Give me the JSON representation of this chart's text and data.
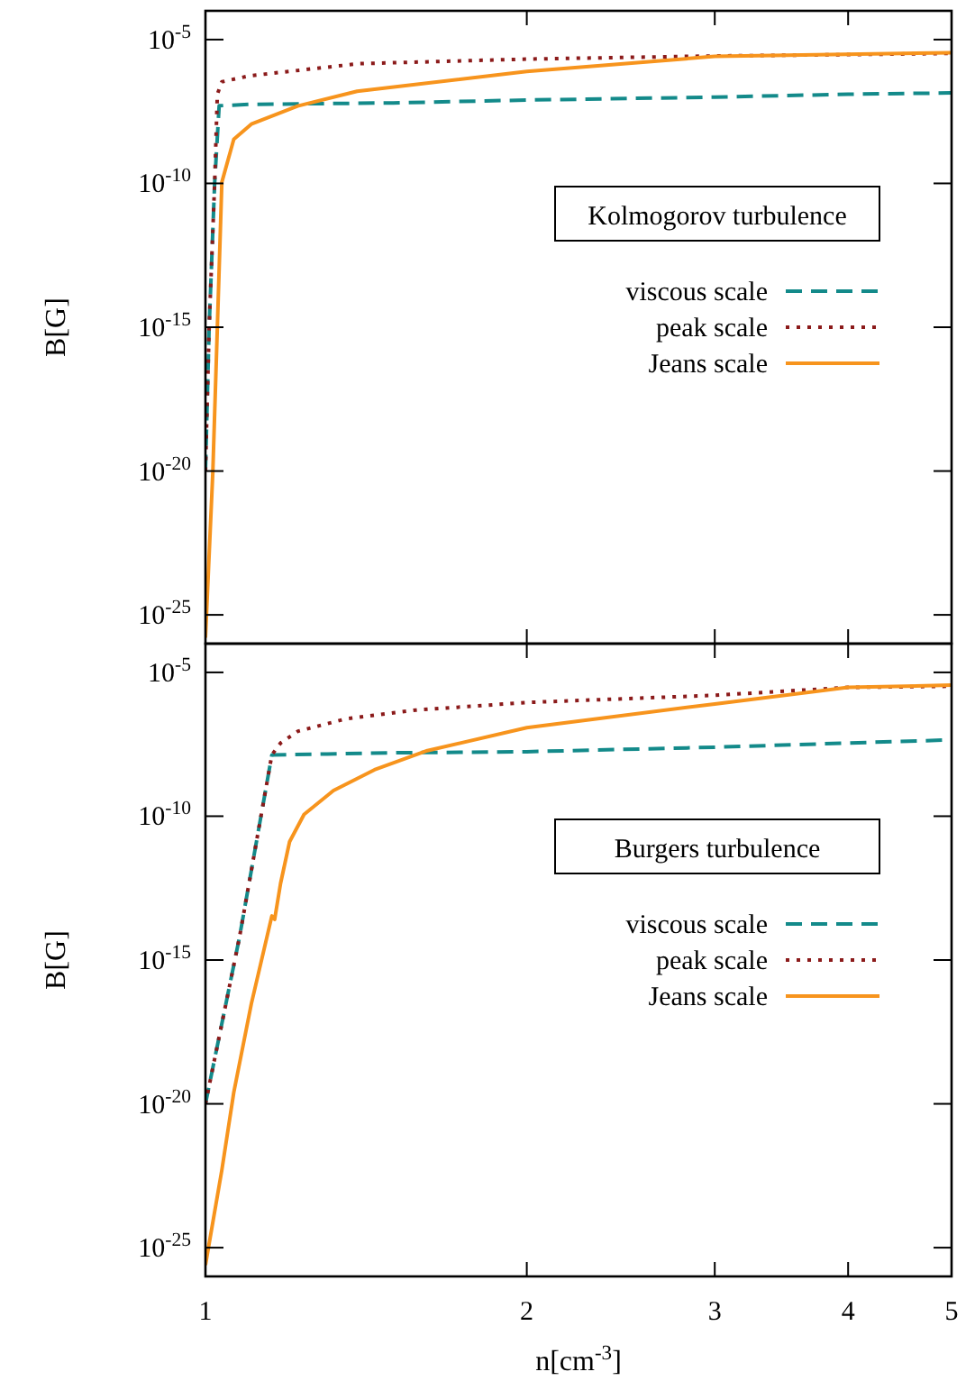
{
  "chart_data": [
    {
      "type": "line",
      "legend_title": "Kolmogorov turbulence",
      "ylabel": "B[G]",
      "log": "xy",
      "xlim": [
        1,
        5
      ],
      "xticks": [
        {
          "value": 1,
          "label": null
        },
        {
          "value": 2,
          "label": null
        },
        {
          "value": 3,
          "label": null
        },
        {
          "value": 4,
          "label": null
        },
        {
          "value": 5,
          "label": null
        }
      ],
      "ylim": [
        1e-26,
        0.0001
      ],
      "yticks": [
        {
          "value": 1e-05,
          "label": "10$^{-5}$"
        },
        {
          "value": 1e-10,
          "label": "10$^{-10}$"
        },
        {
          "value": 1e-15,
          "label": "10$^{-15}$"
        },
        {
          "value": 1e-20,
          "label": "10$^{-20}$"
        },
        {
          "value": 1e-25,
          "label": "10$^{-25}$"
        }
      ],
      "tick_labels": "y",
      "legend": "right",
      "grid": false,
      "series": [
        {
          "name": "viscous scale",
          "color": "#138a8a",
          "line_style": "dashed",
          "x": [
            1,
            1.008,
            1.02,
            1.03,
            1.1,
            1.5,
            2,
            3,
            4,
            5
          ],
          "values": [
            1e-20,
            1e-15,
            1e-10,
            5e-08,
            5.6e-08,
            6.3e-08,
            7.9e-08,
            1e-07,
            1.26e-07,
            1.4e-07
          ]
        },
        {
          "name": "peak scale",
          "color": "#8b1a1a",
          "line_style": "dotted",
          "x": [
            1,
            1.008,
            1.02,
            1.026,
            1.036,
            1.1,
            1.39,
            2,
            3,
            4,
            5
          ],
          "values": [
            1e-20,
            1e-15,
            1e-10,
            1.26e-07,
            3.4e-07,
            5.5e-07,
            1.45e-06,
            2.1e-06,
            2.7e-06,
            3e-06,
            3.3e-06
          ]
        },
        {
          "name": "Jeans scale",
          "color": "#f7941d",
          "line_style": "solid",
          "x": [
            1,
            1.016,
            1.026,
            1.036,
            1.063,
            1.104,
            1.22,
            1.387,
            2,
            3,
            5
          ],
          "values": [
            1.6e-26,
            9e-21,
            1e-15,
            1.1e-10,
            3.4e-09,
            1.15e-08,
            4.9e-08,
            1.6e-07,
            7.8e-07,
            2.6e-06,
            3.5e-06
          ]
        }
      ]
    },
    {
      "type": "line",
      "legend_title": "Burgers turbulence",
      "ylabel": "B[G]",
      "xlabel": "n[cm$^{-3}$]",
      "log": "xy",
      "xlim": [
        1,
        5
      ],
      "xticks": [
        1,
        2,
        3,
        4,
        5
      ],
      "ylim": [
        1e-26,
        0.0001
      ],
      "yticks": [
        {
          "value": 1e-05,
          "label": "10$^{-5}$"
        },
        {
          "value": 1e-10,
          "label": "10$^{-10}$"
        },
        {
          "value": 1e-15,
          "label": "10$^{-15}$"
        },
        {
          "value": 1e-20,
          "label": "10$^{-20}$"
        },
        {
          "value": 1e-25,
          "label": "10$^{-25}$"
        }
      ],
      "legend": "right",
      "grid": false,
      "series": [
        {
          "name": "viscous scale",
          "color": "#138a8a",
          "line_style": "dashed",
          "x": [
            1,
            1.076,
            1.154,
            1.3,
            1.5,
            2,
            3,
            4,
            5
          ],
          "values": [
            1e-20,
            6e-15,
            1.35e-08,
            1.45e-08,
            1.6e-08,
            1.75e-08,
            2.5e-08,
            3.5e-08,
            4.5e-08
          ]
        },
        {
          "name": "peak scale",
          "color": "#8b1a1a",
          "line_style": "dotted",
          "x": [
            1,
            1.076,
            1.154,
            1.176,
            1.221,
            1.352,
            1.575,
            2,
            3,
            4,
            5
          ],
          "values": [
            1e-20,
            6e-15,
            1.35e-08,
            3.5e-08,
            9e-08,
            2.4e-07,
            4.9e-07,
            9e-07,
            1.6e-06,
            3e-06,
            3.3e-06
          ]
        },
        {
          "name": "Jeans scale",
          "color": "#f7941d",
          "line_style": "solid",
          "x": [
            1,
            1.036,
            1.063,
            1.104,
            1.154,
            1.161,
            1.176,
            1.199,
            1.237,
            1.318,
            1.44,
            1.614,
            2,
            3,
            4,
            5
          ],
          "values": [
            2.5e-26,
            5e-23,
            2.5e-20,
            3e-17,
            3.4e-14,
            2.6e-14,
            4.7e-13,
            1.3e-11,
            1.15e-10,
            7.8e-10,
            4.1e-09,
            1.9e-08,
            1.2e-07,
            8e-07,
            3e-06,
            3.6e-06
          ]
        }
      ]
    }
  ]
}
